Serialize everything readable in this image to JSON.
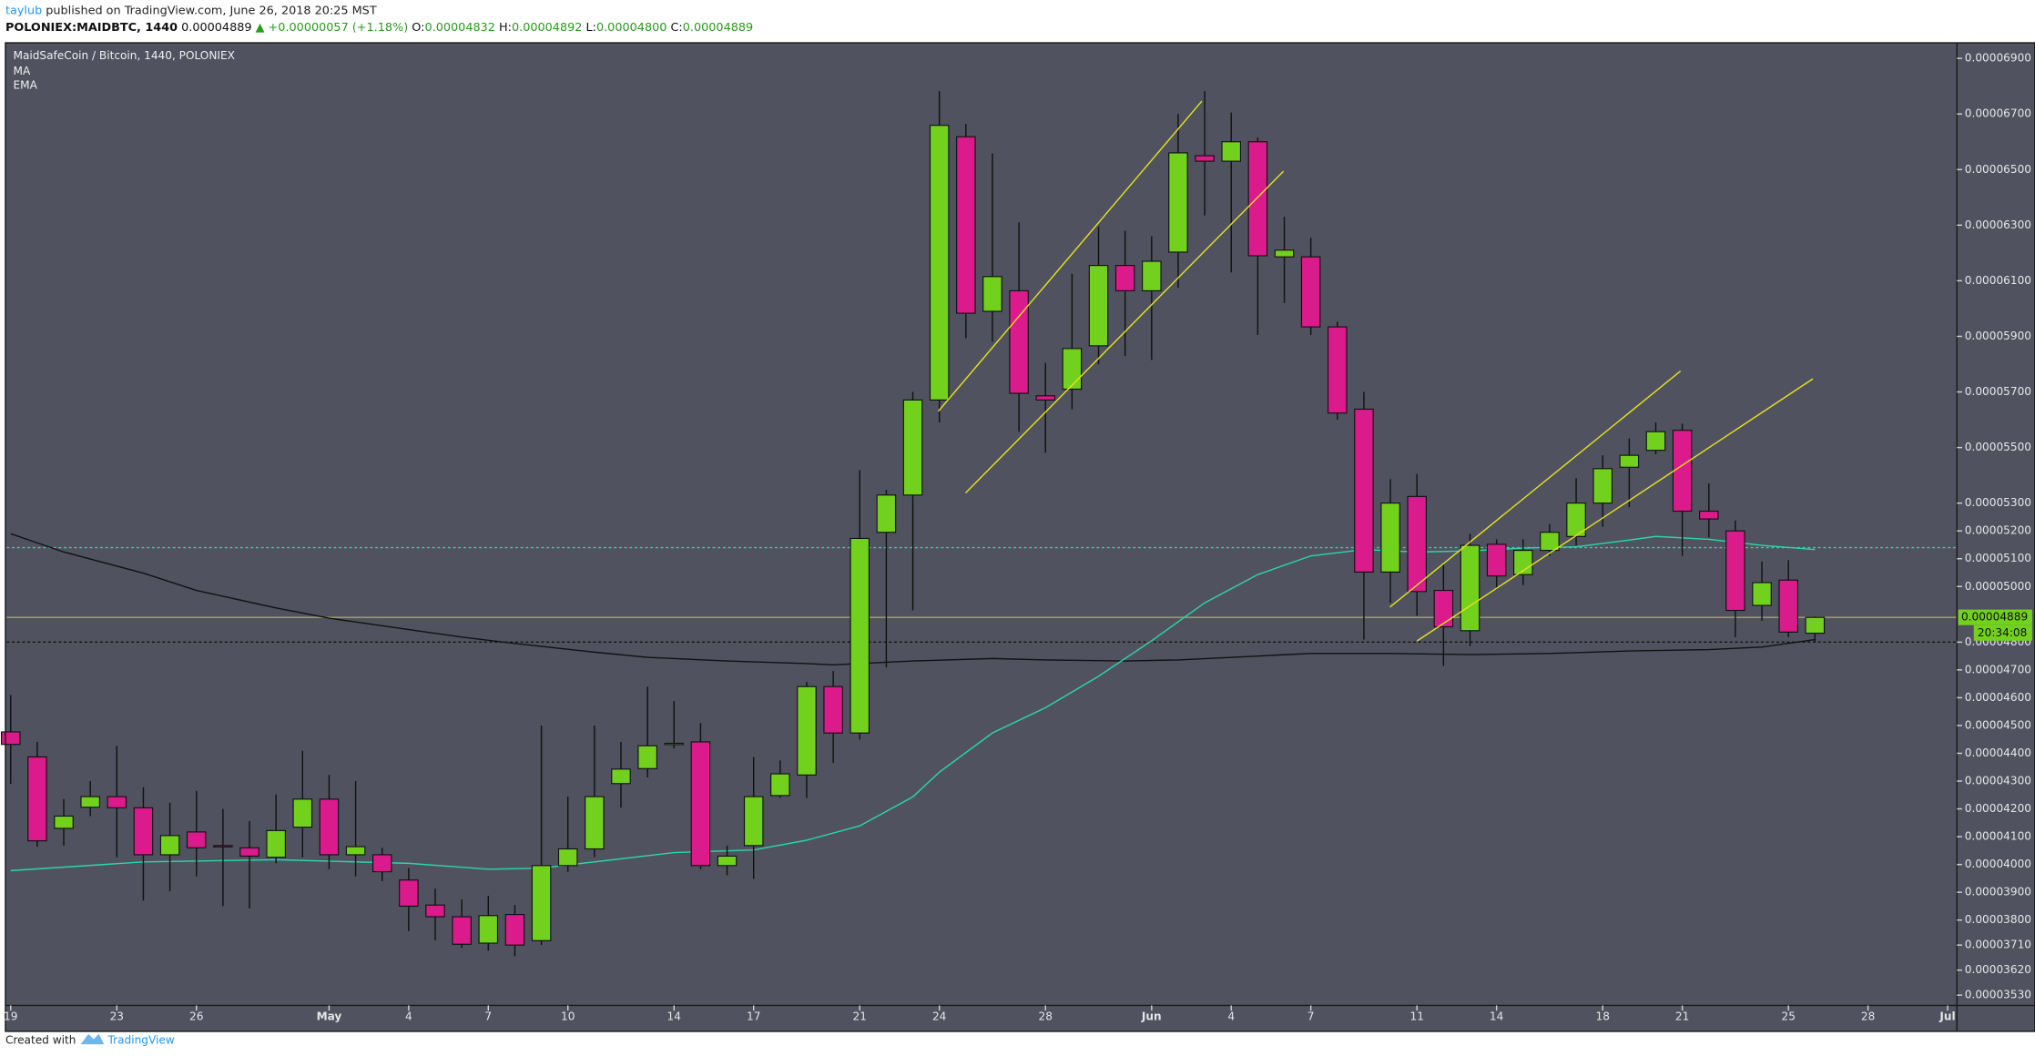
{
  "header": {
    "author": "taylub",
    "published": " published on TradingView.com, June 26, 2018 20:25 MST",
    "symbol": "POLONIEX:MAIDBTC, 1440",
    "last": " 0.00004889 ",
    "change": "▲ +0.00000057 (+1.18%)",
    "ohlc": [
      {
        "key": " O:",
        "value": "0.00004832"
      },
      {
        "key": " H:",
        "value": "0.00004892"
      },
      {
        "key": " L:",
        "value": "0.00004800"
      },
      {
        "key": " C:",
        "value": "0.00004889"
      }
    ]
  },
  "chart_data": {
    "type": "candlestick",
    "title": "MaidSafeCoin / Bitcoin, 1440, POLONIEX",
    "up_color": "#72d11d",
    "down_color": "#db1a8c",
    "open": [
      4.477e-05,
      4.387e-05,
      4.13e-05,
      4.206e-05,
      4.244e-05,
      4.204e-05,
      4.035e-05,
      4.117e-05,
      4.068e-05,
      4.06e-05,
      4.026e-05,
      4.134e-05,
      4.235e-05,
      4.035e-05,
      4.035e-05,
      3.944e-05,
      3.854e-05,
      3.812e-05,
      3.717e-05,
      3.82e-05,
      3.726e-05,
      3.996e-05,
      4.056e-05,
      4.291e-05,
      4.345e-05,
      4.432e-05,
      4.441e-05,
      3.996e-05,
      4.068e-05,
      4.248e-05,
      4.322e-05,
      4.64e-05,
      4.473e-05,
      5.195e-05,
      5.329e-05,
      5.671e-05,
      6.618e-05,
      5.99e-05,
      6.064e-05,
      5.686e-05,
      5.71e-05,
      5.866e-05,
      6.155e-05,
      6.064e-05,
      6.203e-05,
      6.55e-05,
      6.53e-05,
      6.6e-05,
      6.186e-05,
      6.186e-05,
      5.934e-05,
      5.638e-05,
      5.052e-05,
      5.324e-05,
      4.986e-05,
      4.841e-05,
      5.152e-05,
      5.043e-05,
      5.13e-05,
      5.18e-05,
      5.3e-05,
      5.429e-05,
      5.49e-05,
      5.562e-05,
      5.271e-05,
      5.2e-05,
      4.932e-05,
      5.023e-05,
      4.832e-05
    ],
    "high": [
      4.61e-05,
      4.441e-05,
      4.235e-05,
      4.3e-05,
      4.427e-05,
      4.278e-05,
      4.222e-05,
      4.265e-05,
      4.2e-05,
      4.156e-05,
      4.252e-05,
      4.409e-05,
      4.322e-05,
      4.3e-05,
      4.06e-05,
      3.987e-05,
      3.913e-05,
      3.874e-05,
      3.887e-05,
      3.854e-05,
      4.5e-05,
      4.244e-05,
      4.5e-05,
      4.441e-05,
      4.64e-05,
      4.588e-05,
      4.509e-05,
      4.068e-05,
      4.387e-05,
      4.374e-05,
      4.657e-05,
      4.696e-05,
      5.419e-05,
      5.348e-05,
      5.7e-05,
      6.782e-05,
      6.664e-05,
      6.558e-05,
      6.31e-05,
      5.805e-05,
      6.125e-05,
      6.295e-05,
      6.28e-05,
      6.26e-05,
      6.7e-05,
      6.782e-05,
      6.705e-05,
      6.615e-05,
      6.33e-05,
      6.255e-05,
      5.953e-05,
      5.7e-05,
      5.386e-05,
      5.405e-05,
      5.08e-05,
      5.19e-05,
      5.17e-05,
      5.17e-05,
      5.225e-05,
      5.39e-05,
      5.472e-05,
      5.533e-05,
      5.59e-05,
      5.586e-05,
      5.371e-05,
      5.238e-05,
      5.09e-05,
      5.095e-05,
      4.892e-05
    ],
    "low": [
      4.29e-05,
      4.064e-05,
      4.068e-05,
      4.174e-05,
      4.026e-05,
      3.87e-05,
      3.904e-05,
      3.957e-05,
      3.85e-05,
      3.842e-05,
      4.004e-05,
      4.026e-05,
      3.983e-05,
      3.957e-05,
      3.94e-05,
      3.76e-05,
      3.727e-05,
      3.7e-05,
      3.69e-05,
      3.67e-05,
      3.71e-05,
      3.974e-05,
      4.026e-05,
      4.204e-05,
      4.313e-05,
      4.418e-05,
      3.983e-05,
      3.961e-05,
      3.948e-05,
      4.239e-05,
      4.239e-05,
      4.365e-05,
      4.45e-05,
      4.709e-05,
      4.914e-05,
      5.59e-05,
      5.893e-05,
      5.88e-05,
      5.557e-05,
      5.481e-05,
      5.638e-05,
      5.8e-05,
      5.829e-05,
      5.815e-05,
      6.075e-05,
      6.335e-05,
      6.13e-05,
      5.905e-05,
      6.02e-05,
      5.905e-05,
      5.6e-05,
      4.809e-05,
      4.941e-05,
      4.895e-05,
      4.714e-05,
      4.786e-05,
      4.99e-05,
      5.005e-05,
      5.11e-05,
      5.148e-05,
      5.215e-05,
      5.285e-05,
      5.476e-05,
      5.11e-05,
      5.177e-05,
      4.818e-05,
      4.877e-05,
      4.818e-05,
      4.8e-05
    ],
    "close": [
      4.432e-05,
      4.085e-05,
      4.174e-05,
      4.244e-05,
      4.204e-05,
      4.035e-05,
      4.104e-05,
      4.06e-05,
      4.064e-05,
      4.03e-05,
      4.122e-05,
      4.235e-05,
      4.035e-05,
      4.064e-05,
      3.974e-05,
      3.85e-05,
      3.812e-05,
      3.713e-05,
      3.816e-05,
      3.71e-05,
      3.996e-05,
      4.056e-05,
      4.244e-05,
      4.343e-05,
      4.427e-05,
      4.436e-05,
      3.996e-05,
      4.03e-05,
      4.244e-05,
      4.326e-05,
      4.64e-05,
      4.473e-05,
      5.173e-05,
      5.329e-05,
      5.671e-05,
      6.659e-05,
      5.983e-05,
      6.115e-05,
      5.695e-05,
      5.671e-05,
      5.856e-05,
      6.155e-05,
      6.064e-05,
      6.17e-05,
      6.56e-05,
      6.53e-05,
      6.6e-05,
      6.19e-05,
      6.21e-05,
      5.934e-05,
      5.624e-05,
      5.052e-05,
      5.3e-05,
      4.982e-05,
      4.855e-05,
      5.148e-05,
      5.038e-05,
      5.13e-05,
      5.195e-05,
      5.3e-05,
      5.424e-05,
      5.472e-05,
      5.557e-05,
      5.271e-05,
      5.243e-05,
      4.914e-05,
      5.014e-05,
      4.836e-05,
      4.889e-05
    ],
    "lines": [
      {
        "name": "MA",
        "color": "#111111",
        "x": [
          0,
          2,
          5,
          7,
          10,
          12,
          15,
          17,
          19,
          22,
          24,
          27,
          30,
          31,
          34,
          37,
          39,
          42,
          44,
          47,
          49,
          52,
          55,
          58,
          61,
          64,
          66,
          68
        ],
        "values": [
          5.19e-05,
          5.124e-05,
          5.048e-05,
          4.986e-05,
          4.923e-05,
          4.886e-05,
          4.845e-05,
          4.818e-05,
          4.795e-05,
          4.764e-05,
          4.745e-05,
          4.732e-05,
          4.723e-05,
          4.718e-05,
          4.732e-05,
          4.741e-05,
          4.736e-05,
          4.732e-05,
          4.736e-05,
          4.75e-05,
          4.759e-05,
          4.759e-05,
          4.755e-05,
          4.759e-05,
          4.768e-05,
          4.773e-05,
          4.782e-05,
          4.809e-05
        ]
      },
      {
        "name": "EMA",
        "color": "#2bd6a8",
        "x": [
          0,
          5,
          10,
          15,
          18,
          20,
          25,
          28,
          30,
          32,
          34,
          35,
          37,
          39,
          41,
          43,
          45,
          47,
          49,
          51,
          53,
          55,
          57,
          59,
          61,
          62,
          64,
          66,
          68
        ],
        "values": [
          3.978e-05,
          4.009e-05,
          4.017e-05,
          4.004e-05,
          3.983e-05,
          3.987e-05,
          4.043e-05,
          4.052e-05,
          4.087e-05,
          4.139e-05,
          4.243e-05,
          4.332e-05,
          4.473e-05,
          4.564e-05,
          4.677e-05,
          4.805e-05,
          4.941e-05,
          5.043e-05,
          5.11e-05,
          5.133e-05,
          5.124e-05,
          5.128e-05,
          5.138e-05,
          5.143e-05,
          5.167e-05,
          5.18e-05,
          5.17e-05,
          5.148e-05,
          5.133e-05
        ]
      }
    ],
    "hlines": [
      {
        "value": 5.14e-05,
        "color": "#2bd6a8"
      },
      {
        "value": 4.8e-05,
        "color": "#111111"
      }
    ],
    "last_price": {
      "value": 4.889e-05,
      "label": "0.00004889",
      "color": "#72d11d",
      "line_color": "#a3a36a"
    },
    "countdown": "20:34:08",
    "ylim": [
      3.493e-05,
      6.956e-05
    ],
    "yticks": [
      {
        "value": 3.53e-05,
        "label": "0.00003530"
      },
      {
        "value": 3.62e-05,
        "label": "0.00003620"
      },
      {
        "value": 3.71e-05,
        "label": "0.00003710"
      },
      {
        "value": 3.8e-05,
        "label": "0.00003800"
      },
      {
        "value": 3.9e-05,
        "label": "0.00003900"
      },
      {
        "value": 4e-05,
        "label": "0.00004000"
      },
      {
        "value": 4.1e-05,
        "label": "0.00004100"
      },
      {
        "value": 4.2e-05,
        "label": "0.00004200"
      },
      {
        "value": 4.3e-05,
        "label": "0.00004300"
      },
      {
        "value": 4.4e-05,
        "label": "0.00004400"
      },
      {
        "value": 4.5e-05,
        "label": "0.00004500"
      },
      {
        "value": 4.6e-05,
        "label": "0.00004600"
      },
      {
        "value": 4.7e-05,
        "label": "0.00004700"
      },
      {
        "value": 4.8e-05,
        "label": "0.00004800"
      },
      {
        "value": 5e-05,
        "label": "0.00005000"
      },
      {
        "value": 5.1e-05,
        "label": "0.00005100"
      },
      {
        "value": 5.2e-05,
        "label": "0.00005200"
      },
      {
        "value": 5.3e-05,
        "label": "0.00005300"
      },
      {
        "value": 5.5e-05,
        "label": "0.00005500"
      },
      {
        "value": 5.7e-05,
        "label": "0.00005700"
      },
      {
        "value": 5.9e-05,
        "label": "0.00005900"
      },
      {
        "value": 6.1e-05,
        "label": "0.00006100"
      },
      {
        "value": 6.3e-05,
        "label": "0.00006300"
      },
      {
        "value": 6.5e-05,
        "label": "0.00006500"
      },
      {
        "value": 6.7e-05,
        "label": "0.00006700"
      },
      {
        "value": 6.9e-05,
        "label": "0.00006900"
      }
    ],
    "xlim": [
      -0.15,
      73.35
    ],
    "xticks": [
      {
        "value": 0,
        "label": "19"
      },
      {
        "value": 4,
        "label": "23"
      },
      {
        "value": 7,
        "label": "26"
      },
      {
        "value": 12,
        "label": "May"
      },
      {
        "value": 15,
        "label": "4"
      },
      {
        "value": 18,
        "label": "7"
      },
      {
        "value": 21,
        "label": "10"
      },
      {
        "value": 25,
        "label": "14"
      },
      {
        "value": 28,
        "label": "17"
      },
      {
        "value": 32,
        "label": "21"
      },
      {
        "value": 35,
        "label": "24"
      },
      {
        "value": 39,
        "label": "28"
      },
      {
        "value": 43,
        "label": "Jun"
      },
      {
        "value": 46,
        "label": "4"
      },
      {
        "value": 49,
        "label": "7"
      },
      {
        "value": 53,
        "label": "11"
      },
      {
        "value": 56,
        "label": "14"
      },
      {
        "value": 60,
        "label": "18"
      },
      {
        "value": 63,
        "label": "21"
      },
      {
        "value": 67,
        "label": "25"
      },
      {
        "value": 70,
        "label": "28"
      },
      {
        "value": 73,
        "label": "Jul"
      }
    ]
  },
  "footer": {
    "created": "Created with",
    "brand": "TradingView"
  }
}
